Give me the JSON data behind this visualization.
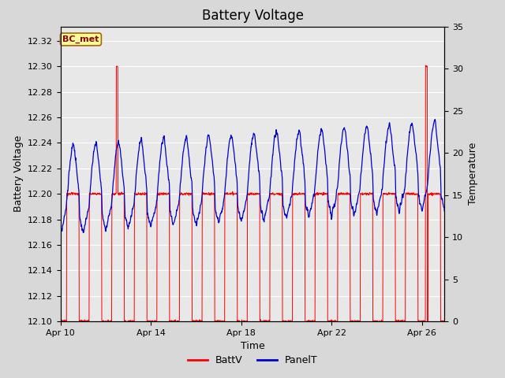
{
  "title": "Battery Voltage",
  "xlabel": "Time",
  "ylabel_left": "Battery Voltage",
  "ylabel_right": "Temperature",
  "legend_label": "BC_met",
  "BattV_label": "BattV",
  "PanelT_label": "PanelT",
  "ylim_left": [
    12.1,
    12.3314
  ],
  "ylim_right": [
    0,
    35
  ],
  "yticks_left": [
    12.1,
    12.12,
    12.14,
    12.16,
    12.18,
    12.2,
    12.22,
    12.24,
    12.26,
    12.28,
    12.3,
    12.32
  ],
  "yticks_right": [
    0,
    5,
    10,
    15,
    20,
    25,
    30,
    35
  ],
  "xtick_labels": [
    "Apr 10",
    "Apr 14",
    "Apr 18",
    "Apr 22",
    "Apr 26"
  ],
  "xtick_pos": [
    0,
    4,
    8,
    12,
    16
  ],
  "xlim": [
    0,
    17
  ],
  "background_color": "#d8d8d8",
  "plot_bg_color": "#e8e8e8",
  "batt_color": "#ff0000",
  "panel_color": "#0000cc",
  "legend_bg": "#ffff99",
  "legend_border": "#aa6600",
  "title_fontsize": 12,
  "axis_label_fontsize": 9,
  "tick_fontsize": 8
}
